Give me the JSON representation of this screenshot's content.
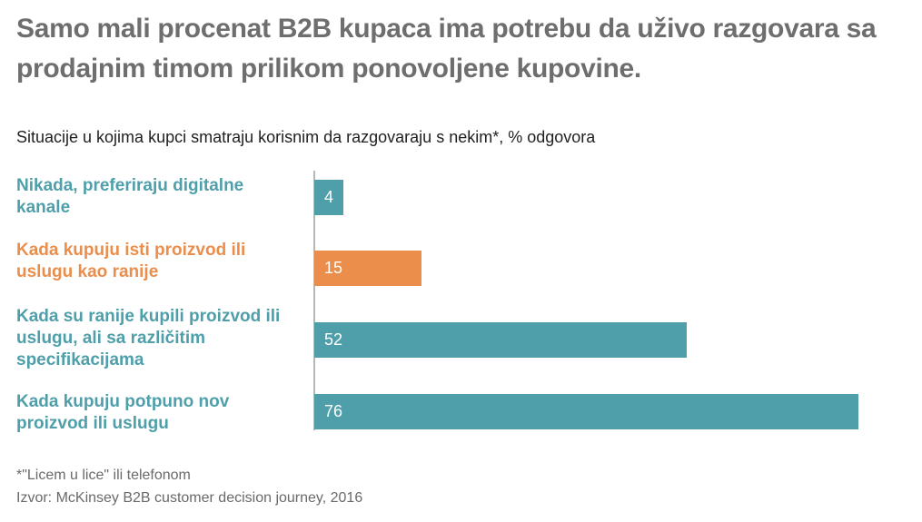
{
  "title": "Samo mali procenat B2B kupaca ima potrebu da uživo razgovara sa prodajnim timom prilikom ponovoljene kupovine.",
  "subtitle": "Situacije u kojima kupci smatraju korisnim da razgovaraju s nekim*, % odgovora",
  "footnotes": {
    "note": "*\"Licem u lice\" ili telefonom",
    "source": "Izvor: McKinsey B2B customer decision journey, 2016"
  },
  "colors": {
    "teal": "#4f9faa",
    "orange": "#eb8e4c",
    "axis": "#b7b7b7",
    "title": "#6e6e6e"
  },
  "chart_data": {
    "type": "bar",
    "orientation": "horizontal",
    "title": "Samo mali procenat B2B kupaca ima potrebu da uživo razgovara sa prodajnim timom prilikom ponovoljene kupovine.",
    "subtitle": "Situacije u kojima kupci smatraju korisnim da razgovaraju s nekim*, % odgovora",
    "categories": [
      "Nikada, preferiraju digitalne kanale",
      "Kada kupuju isti proizvod ili uslugu kao ranije",
      "Kada su ranije kupili proizvod ili uslugu, ali sa različitim specifikacijama",
      "Kada kupuju potpuno nov proizvod ili uslugu"
    ],
    "values": [
      4,
      15,
      52,
      76
    ],
    "bar_colors": [
      "#4f9faa",
      "#eb8e4c",
      "#4f9faa",
      "#4f9faa"
    ],
    "data_labels": [
      "4",
      "15",
      "52",
      "76"
    ],
    "xlim": [
      0,
      76
    ],
    "grid": false,
    "legend": "none"
  }
}
